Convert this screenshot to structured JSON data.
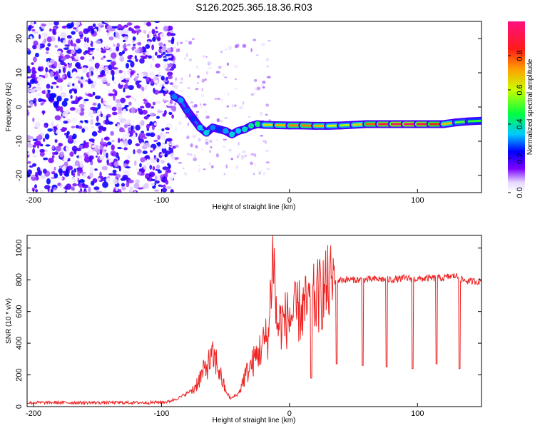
{
  "title": "S126.2025.365.18.36.R03",
  "chart_data": [
    {
      "type": "heatmap",
      "name": "spectrogram",
      "xlabel": "Height of straight line (km)",
      "ylabel": "Frequency (Hz)",
      "xlim": [
        -205,
        150
      ],
      "ylim": [
        -25,
        25
      ],
      "xticks": [
        -200,
        -100,
        0,
        100
      ],
      "yticks": [
        -20,
        -10,
        0,
        10,
        20
      ],
      "colorbar": {
        "label": "Normalized spectral amplitude",
        "range": [
          0,
          1
        ],
        "ticks": [
          0.0,
          0.2,
          0.4,
          0.6,
          0.8
        ],
        "tick_labels": [
          "0.0",
          "0.2",
          "0.4",
          "0.6",
          "0.8"
        ]
      },
      "tone_track": [
        {
          "x": -90,
          "f": 3.0,
          "amp": 0.3
        },
        {
          "x": -85,
          "f": 2.0,
          "amp": 0.32
        },
        {
          "x": -80,
          "f": -1.0,
          "amp": 0.28
        },
        {
          "x": -75,
          "f": -3.5,
          "amp": 0.26
        },
        {
          "x": -70,
          "f": -6.0,
          "amp": 0.34
        },
        {
          "x": -65,
          "f": -7.5,
          "amp": 0.36
        },
        {
          "x": -60,
          "f": -6.0,
          "amp": 0.3
        },
        {
          "x": -55,
          "f": -6.5,
          "amp": 0.26
        },
        {
          "x": -50,
          "f": -7.0,
          "amp": 0.32
        },
        {
          "x": -45,
          "f": -8.0,
          "amp": 0.36
        },
        {
          "x": -40,
          "f": -7.0,
          "amp": 0.34
        },
        {
          "x": -35,
          "f": -6.5,
          "amp": 0.38
        },
        {
          "x": -30,
          "f": -5.5,
          "amp": 0.4
        },
        {
          "x": -25,
          "f": -5.0,
          "amp": 0.44
        },
        {
          "x": -20,
          "f": -5.2,
          "amp": 0.62
        },
        {
          "x": -10,
          "f": -5.3,
          "amp": 0.66
        },
        {
          "x": 0,
          "f": -5.4,
          "amp": 0.72
        },
        {
          "x": 10,
          "f": -5.4,
          "amp": 0.78
        },
        {
          "x": 20,
          "f": -5.5,
          "amp": 0.74
        },
        {
          "x": 30,
          "f": -5.5,
          "amp": 0.66
        },
        {
          "x": 40,
          "f": -5.4,
          "amp": 0.56
        },
        {
          "x": 50,
          "f": -5.2,
          "amp": 0.6
        },
        {
          "x": 60,
          "f": -5.0,
          "amp": 0.7
        },
        {
          "x": 70,
          "f": -5.0,
          "amp": 0.88
        },
        {
          "x": 80,
          "f": -5.0,
          "amp": 0.94
        },
        {
          "x": 90,
          "f": -5.0,
          "amp": 0.97
        },
        {
          "x": 100,
          "f": -5.0,
          "amp": 0.95
        },
        {
          "x": 110,
          "f": -5.0,
          "amp": 0.9
        },
        {
          "x": 120,
          "f": -5.0,
          "amp": 0.8
        },
        {
          "x": 130,
          "f": -4.5,
          "amp": 0.56
        },
        {
          "x": 140,
          "f": -4.2,
          "amp": 0.5
        },
        {
          "x": 150,
          "f": -4.0,
          "amp": 0.48
        }
      ],
      "noise_region": {
        "x_start": -205,
        "x_end": -90,
        "f_range": [
          -25,
          25
        ],
        "amp_range": [
          0.0,
          0.25
        ]
      }
    },
    {
      "type": "line",
      "name": "snr",
      "xlabel": "Height of straight line (km)",
      "ylabel": "SNR (10 * v/v)",
      "xlim": [
        -205,
        150
      ],
      "ylim": [
        0,
        1080
      ],
      "xticks": [
        -200,
        -100,
        0,
        100
      ],
      "yticks": [
        0,
        200,
        400,
        600,
        800,
        1000
      ],
      "color": "#ee2222",
      "series": [
        {
          "name": "SNR",
          "x": [
            -205,
            -150,
            -110,
            -95,
            -85,
            -75,
            -70,
            -65,
            -60,
            -57,
            -54,
            -50,
            -46,
            -40,
            -35,
            -30,
            -25,
            -20,
            -16,
            -13,
            -10,
            -5,
            0,
            5,
            10,
            15,
            20,
            25,
            30,
            35,
            40,
            50,
            60,
            70,
            80,
            90,
            100,
            110,
            120,
            125,
            130,
            135,
            140,
            150
          ],
          "values": [
            25,
            25,
            25,
            30,
            60,
            110,
            180,
            250,
            310,
            280,
            200,
            100,
            50,
            80,
            190,
            260,
            330,
            400,
            470,
            1060,
            510,
            540,
            560,
            590,
            610,
            640,
            680,
            720,
            760,
            790,
            800,
            800,
            800,
            805,
            800,
            810,
            805,
            810,
            810,
            820,
            825,
            800,
            790,
            790
          ]
        }
      ],
      "dropouts": [
        {
          "x": 17,
          "value": 180
        },
        {
          "x": 37,
          "value": 270
        },
        {
          "x": 57,
          "value": 260
        },
        {
          "x": 76,
          "value": 250
        },
        {
          "x": 96,
          "value": 240
        },
        {
          "x": 115,
          "value": 270
        },
        {
          "x": 133,
          "value": 240
        }
      ]
    }
  ]
}
